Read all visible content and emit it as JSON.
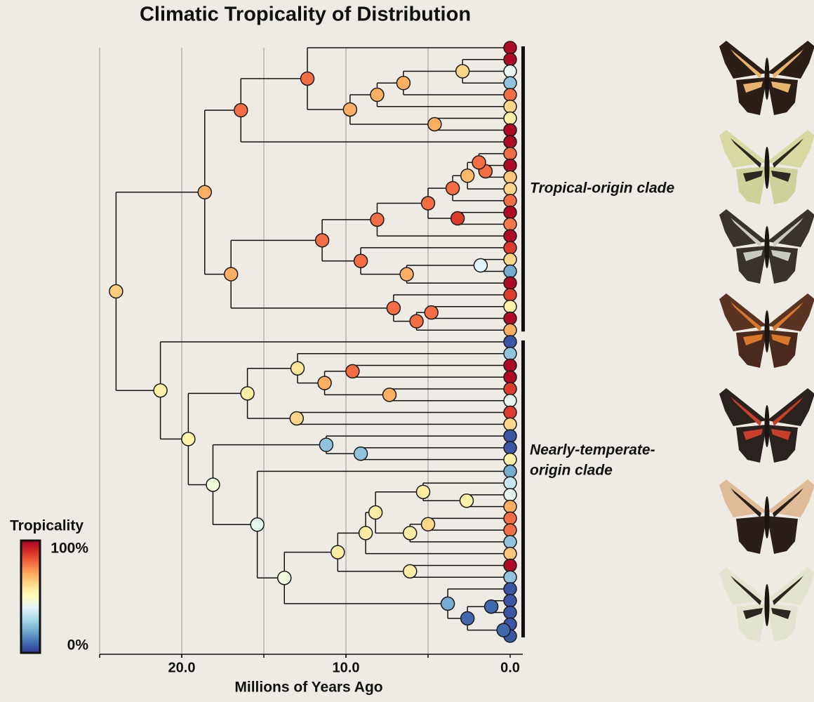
{
  "chart_data": {
    "type": "tree",
    "title": "Climatic Tropicality of Distribution",
    "x_label": "Millions of Years Ago",
    "xlim": [
      25,
      0
    ],
    "xticks": [
      {
        "value": 20,
        "label": "20.0"
      },
      {
        "value": 10,
        "label": "10.0"
      },
      {
        "value": 0,
        "label": "0.0"
      }
    ],
    "grid_x": [
      25,
      20,
      15,
      10,
      5
    ],
    "colorbar": {
      "label": "Tropicality",
      "ticks": [
        {
          "value": 100,
          "label": "100%"
        },
        {
          "value": 0,
          "label": "0%"
        }
      ]
    },
    "tree": {
      "age": 24.0,
      "tropicality": 64,
      "children": [
        {
          "age": 18.6,
          "tropicality": 70,
          "clade_label": [
            "Tropical-origin clade"
          ],
          "children": [
            {
              "age": 16.4,
              "tropicality": 80,
              "children": [
                {
                  "age": 12.35,
                  "tropicality": 80,
                  "children": [
                    {
                      "tropicality": 98
                    },
                    {
                      "age": 9.75,
                      "tropicality": 70,
                      "children": [
                        {
                          "age": 8.1,
                          "tropicality": 70,
                          "children": [
                            {
                              "age": 6.5,
                              "tropicality": 70,
                              "children": [
                                {
                                  "age": 2.9,
                                  "tropicality": 62,
                                  "children": [
                                    {
                                      "tropicality": 98
                                    },
                                    {
                                      "tropicality": 42
                                    },
                                    {
                                      "tropicality": 25
                                    }
                                  ]
                                },
                                {
                                  "tropicality": 80
                                }
                              ]
                            },
                            {
                              "tropicality": 62
                            }
                          ]
                        },
                        {
                          "age": 4.6,
                          "tropicality": 70,
                          "children": [
                            {
                              "tropicality": 55
                            },
                            {
                              "tropicality": 98
                            }
                          ]
                        }
                      ]
                    }
                  ]
                },
                {
                  "tropicality": 98
                }
              ]
            },
            {
              "age": 17.0,
              "tropicality": 70,
              "children": [
                {
                  "age": 11.45,
                  "tropicality": 80,
                  "children": [
                    {
                      "age": 8.1,
                      "tropicality": 80,
                      "children": [
                        {
                          "age": 5.0,
                          "tropicality": 80,
                          "children": [
                            {
                              "age": 3.5,
                              "tropicality": 80,
                              "children": [
                                {
                                  "age": 2.6,
                                  "tropicality": 68,
                                  "children": [
                                    {
                                      "age": 1.9,
                                      "tropicality": 80,
                                      "children": [
                                        {
                                          "tropicality": 80
                                        },
                                        {
                                          "age": 1.5,
                                          "tropicality": 80,
                                          "children": [
                                            {
                                              "tropicality": 98
                                            },
                                            {
                                              "tropicality": 65
                                            }
                                          ]
                                        }
                                      ]
                                    },
                                    {
                                      "tropicality": 62
                                    }
                                  ]
                                },
                                {
                                  "tropicality": 80
                                }
                              ]
                            },
                            {
                              "age": 3.2,
                              "tropicality": 88,
                              "children": [
                                {
                                  "tropicality": 98
                                },
                                {
                                  "tropicality": 78
                                }
                              ]
                            }
                          ]
                        },
                        {
                          "tropicality": 98
                        }
                      ]
                    },
                    {
                      "age": 9.1,
                      "tropicality": 80,
                      "children": [
                        {
                          "tropicality": 88
                        },
                        {
                          "age": 6.3,
                          "tropicality": 70,
                          "children": [
                            {
                              "age": 1.8,
                              "tropicality": 40,
                              "children": [
                                {
                                  "tropicality": 62
                                },
                                {
                                  "tropicality": 20
                                }
                              ]
                            },
                            {
                              "tropicality": 98
                            }
                          ]
                        }
                      ]
                    }
                  ]
                },
                {
                  "age": 7.1,
                  "tropicality": 80,
                  "children": [
                    {
                      "tropicality": 88
                    },
                    {
                      "age": 5.7,
                      "tropicality": 80,
                      "children": [
                        {
                          "age": 4.8,
                          "tropicality": 80,
                          "children": [
                            {
                              "tropicality": 55
                            },
                            {
                              "tropicality": 98
                            }
                          ]
                        },
                        {
                          "tropicality": 70
                        }
                      ]
                    }
                  ]
                }
              ]
            }
          ]
        },
        {
          "age": 21.3,
          "tropicality": 55,
          "clade_label": [
            "Nearly-temperate-",
            "origin clade"
          ],
          "children": [
            {
              "tropicality": 5
            },
            {
              "age": 19.6,
              "tropicality": 54,
              "children": [
                {
                  "age": 16.0,
                  "tropicality": 56,
                  "children": [
                    {
                      "age": 12.95,
                      "tropicality": 58,
                      "children": [
                        {
                          "tropicality": 25
                        },
                        {
                          "age": 11.3,
                          "tropicality": 70,
                          "children": [
                            {
                              "age": 9.6,
                              "tropicality": 80,
                              "children": [
                                {
                                  "tropicality": 98
                                },
                                {
                                  "tropicality": 98
                                }
                              ]
                            },
                            {
                              "age": 7.35,
                              "tropicality": 70,
                              "children": [
                                {
                                  "tropicality": 88
                                },
                                {
                                  "tropicality": 42
                                }
                              ]
                            }
                          ]
                        }
                      ]
                    },
                    {
                      "age": 13.0,
                      "tropicality": 62,
                      "children": [
                        {
                          "tropicality": 88
                        },
                        {
                          "tropicality": 62
                        }
                      ]
                    }
                  ]
                },
                {
                  "age": 18.1,
                  "tropicality": 45,
                  "children": [
                    {
                      "age": 11.2,
                      "tropicality": 25,
                      "children": [
                        {
                          "tropicality": 5
                        },
                        {
                          "age": 9.1,
                          "tropicality": 25,
                          "children": [
                            {
                              "tropicality": 5
                            },
                            {
                              "tropicality": 55
                            }
                          ]
                        }
                      ]
                    },
                    {
                      "age": 15.4,
                      "tropicality": 42,
                      "children": [
                        {
                          "tropicality": 20
                        },
                        {
                          "age": 13.75,
                          "tropicality": 45,
                          "children": [
                            {
                              "age": 10.5,
                              "tropicality": 56,
                              "children": [
                                {
                                  "age": 8.8,
                                  "tropicality": 56,
                                  "children": [
                                    {
                                      "age": 8.2,
                                      "tropicality": 56,
                                      "children": [
                                        {
                                          "age": 5.3,
                                          "tropicality": 56,
                                          "children": [
                                            {
                                              "tropicality": 35
                                            },
                                            {
                                              "age": 2.65,
                                              "tropicality": 55,
                                              "children": [
                                                {
                                                  "tropicality": 42
                                                },
                                                {
                                                  "tropicality": 70
                                                }
                                              ]
                                            }
                                          ]
                                        },
                                        {
                                          "age": 6.1,
                                          "tropicality": 56,
                                          "children": [
                                            {
                                              "age": 5.0,
                                              "tropicality": 62,
                                              "children": [
                                                {
                                                  "tropicality": 80
                                                },
                                                {
                                                  "tropicality": 80
                                                }
                                              ]
                                            },
                                            {
                                              "tropicality": 25
                                            }
                                          ]
                                        }
                                      ]
                                    },
                                    {
                                      "tropicality": 65
                                    }
                                  ]
                                },
                                {
                                  "age": 6.1,
                                  "tropicality": 56,
                                  "children": [
                                    {
                                      "tropicality": 98
                                    },
                                    {
                                      "tropicality": 25
                                    }
                                  ]
                                }
                              ]
                            },
                            {
                              "age": 3.8,
                              "tropicality": 20,
                              "children": [
                                {
                                  "tropicality": 5
                                },
                                {
                                  "age": 2.6,
                                  "tropicality": 8,
                                  "children": [
                                    {
                                      "age": 1.15,
                                      "tropicality": 8,
                                      "children": [
                                        {
                                          "tropicality": 5
                                        },
                                        {
                                          "tropicality": 5
                                        }
                                      ]
                                    },
                                    {
                                      "age": 0.4,
                                      "tropicality": 8,
                                      "children": [
                                        {
                                          "tropicality": 5
                                        },
                                        {
                                          "tropicality": 5
                                        }
                                      ]
                                    }
                                  ]
                                }
                              ]
                            }
                          ]
                        }
                      ]
                    }
                  ]
                }
              ]
            }
          ]
        }
      ]
    }
  }
}
